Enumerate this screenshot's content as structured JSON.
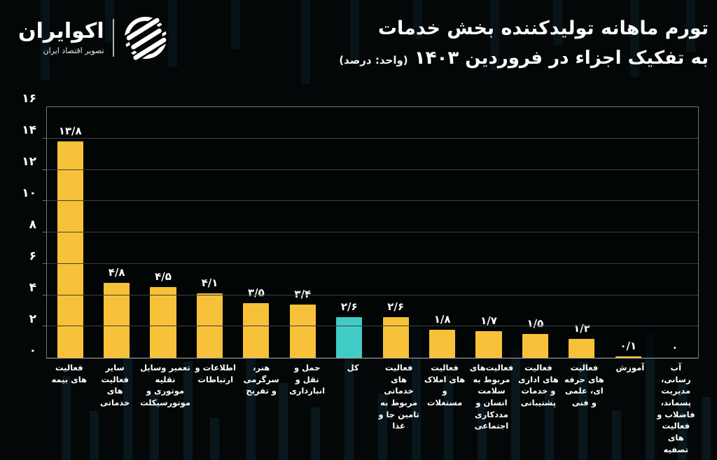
{
  "brand": {
    "name": "اکوایران",
    "tagline": "تصویر اقتصاد ایران"
  },
  "title": {
    "line1": "تورم ماهانه تولیدکننده بخش خدمات",
    "line2": "به تفکیک اجزاء در فروردین ۱۴۰۳",
    "unit": "(واحد: درصد)"
  },
  "colors": {
    "bar": "#F7C23A",
    "highlight": "#41CBC6",
    "background": "#040707",
    "grid": "#39403F",
    "text": "#FFFFFF"
  },
  "chart_data": {
    "type": "bar",
    "title": "تورم ماهانه تولیدکننده بخش خدمات به تفکیک اجزاء در فروردین ۱۴۰۳",
    "unit": "درصد",
    "grid": true,
    "legend": false,
    "ylim": [
      0,
      16
    ],
    "yticks": [
      0,
      2,
      4,
      6,
      8,
      10,
      12,
      14,
      16
    ],
    "ytick_labels": [
      "۰",
      "۲",
      "۴",
      "۶",
      "۸",
      "۱۰",
      "۱۲",
      "۱۴",
      "۱۶"
    ],
    "categories": [
      "فعالیت های بیمه",
      "سایر فعالیت های خدماتی",
      "تعمیر وسایل نقلیه موتوری و موتورسیکلت",
      "اطلاعات و ارتباطات",
      "هنر، سرگرمی و تفریح",
      "حمل و نقل و انبارداری",
      "کل",
      "فعالیت های خدماتی مربوط به تامین جا و غذا",
      "فعالیت های املاک و مستغلات",
      "فعالیت‌های مربوط به سلامت انسان و مددکاری اجتماعی",
      "فعالیت های اداری و خدمات پشتیبانی",
      "فعالیت های حرفه ای، علمی و فنی",
      "آموزش",
      "آب رسانی، مدیریت پسماند، فاضلاب و فعالیت های تصفیه"
    ],
    "values": [
      13.8,
      4.8,
      4.5,
      4.1,
      3.5,
      3.4,
      2.6,
      2.6,
      1.8,
      1.7,
      1.5,
      1.2,
      0.1,
      0
    ],
    "value_labels": [
      "۱۳/۸",
      "۴/۸",
      "۴/۵",
      "۴/۱",
      "۳/۵",
      "۳/۴",
      "۲/۶",
      "۲/۶",
      "۱/۸",
      "۱/۷",
      "۱/۵",
      "۱/۲",
      "۰/۱",
      "۰"
    ],
    "highlight_index": 6,
    "highlight_category": "کل"
  }
}
